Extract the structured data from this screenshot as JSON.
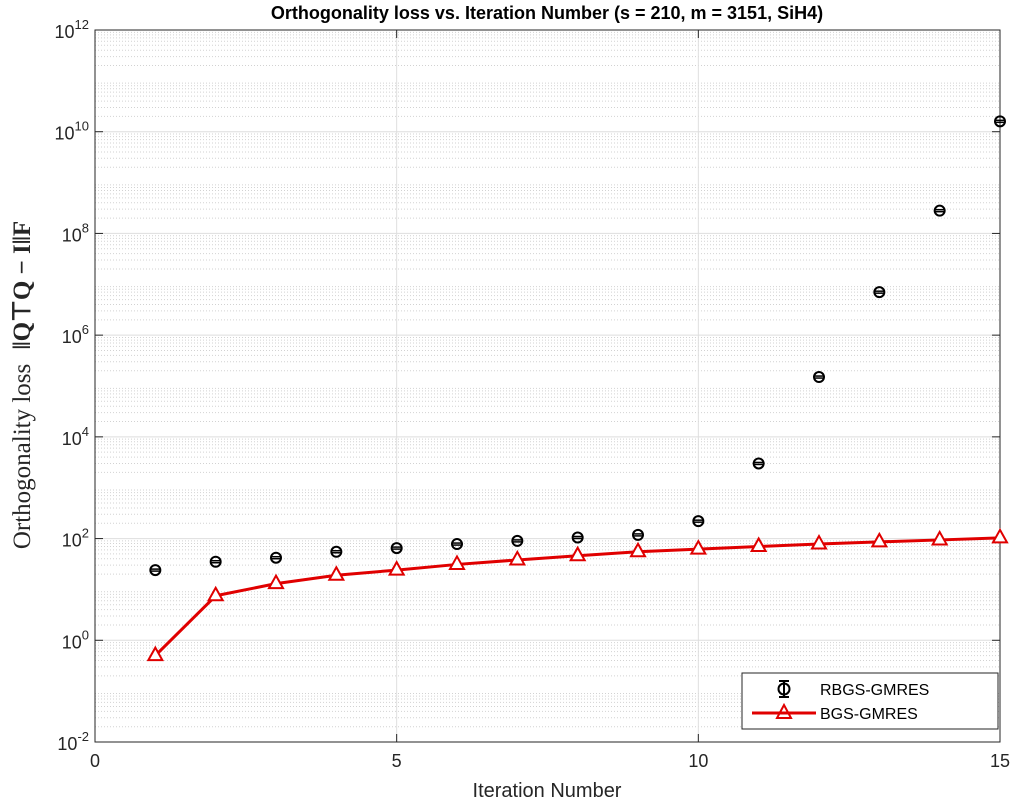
{
  "chart_data": {
    "type": "scatter",
    "title": "Orthogonality loss vs. Iteration Number (s = 210, m = 3151, SiH4)",
    "xlabel": "Iteration Number",
    "ylabel_text": "Orthogonality loss",
    "ylabel_math": "‖Q⊤Q − I‖F",
    "xlim": [
      0,
      15
    ],
    "ylim": [
      0.01,
      1000000000000
    ],
    "yscale": "log",
    "grid": true,
    "minor_grid": true,
    "legend_location": "bottom-right",
    "x_ticks": [
      0,
      5,
      10,
      15
    ],
    "y_ticks": [
      {
        "base": "10",
        "exp": "-2"
      },
      {
        "base": "10",
        "exp": "0"
      },
      {
        "base": "10",
        "exp": "2"
      },
      {
        "base": "10",
        "exp": "4"
      },
      {
        "base": "10",
        "exp": "6"
      },
      {
        "base": "10",
        "exp": "8"
      },
      {
        "base": "10",
        "exp": "10"
      },
      {
        "base": "10",
        "exp": "12"
      }
    ],
    "x": [
      1,
      2,
      3,
      4,
      5,
      6,
      7,
      8,
      9,
      10,
      11,
      12,
      13,
      14,
      15
    ],
    "series": [
      {
        "name": "RBGS-GMRES",
        "style": "errorbar-circle",
        "color": "#000000",
        "values": [
          24,
          35,
          42,
          55,
          65,
          78,
          90,
          105,
          118,
          220,
          3000,
          150000,
          7000000,
          280000000,
          16000000000
        ]
      },
      {
        "name": "BGS-GMRES",
        "style": "line-triangle",
        "color": "#e00000",
        "values": [
          0.5,
          7.5,
          13,
          19,
          24,
          31,
          38,
          46,
          55,
          62,
          70,
          78,
          86,
          94,
          103
        ]
      }
    ]
  }
}
